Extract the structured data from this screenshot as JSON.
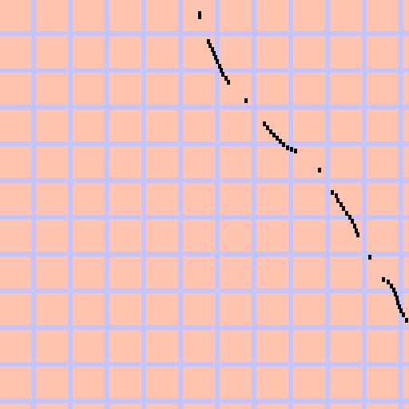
{
  "colors": {
    "background": "#ffc4b0",
    "grid": "#c4c4ff",
    "pixel": "#000000"
  },
  "grid": {
    "columns": 11,
    "rows": 11
  },
  "trail": {
    "pixel_count": 56
  }
}
